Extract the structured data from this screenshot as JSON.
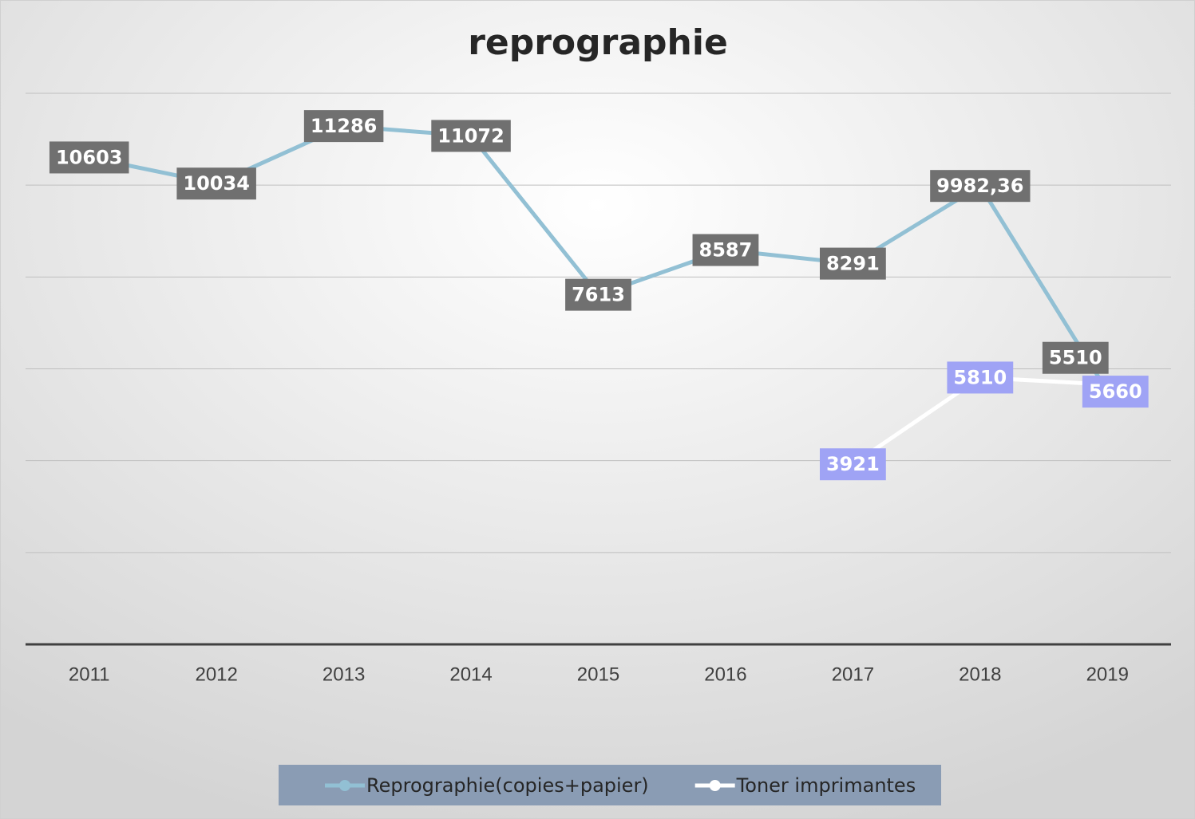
{
  "chart_data": {
    "type": "line",
    "title": "reprographie",
    "categories": [
      "2011",
      "2012",
      "2013",
      "2014",
      "2015",
      "2016",
      "2017",
      "2018",
      "2019"
    ],
    "series": [
      {
        "name": "Reprographie(copies+papier)",
        "color": "#92c0d4",
        "label_color": "#707070",
        "values": [
          10603,
          10034,
          11286,
          11072,
          7613,
          8587,
          8291,
          9982.36,
          5510
        ],
        "value_labels": [
          "10603",
          "10034",
          "11286",
          "11072",
          "7613",
          "8587",
          "8291",
          "9982,36",
          "5510"
        ]
      },
      {
        "name": "Toner imprimantes",
        "color": "#ffffff",
        "label_color": "#9fa3f5",
        "values": [
          null,
          null,
          null,
          null,
          null,
          null,
          3921,
          5810,
          5660
        ],
        "value_labels": [
          null,
          null,
          null,
          null,
          null,
          null,
          "3921",
          "5810",
          "5660"
        ]
      }
    ],
    "ylim": [
      0,
      12000
    ],
    "yticks": [
      0,
      2000,
      4000,
      6000,
      8000,
      10000,
      12000
    ],
    "grid": true,
    "legend": "bottom"
  }
}
